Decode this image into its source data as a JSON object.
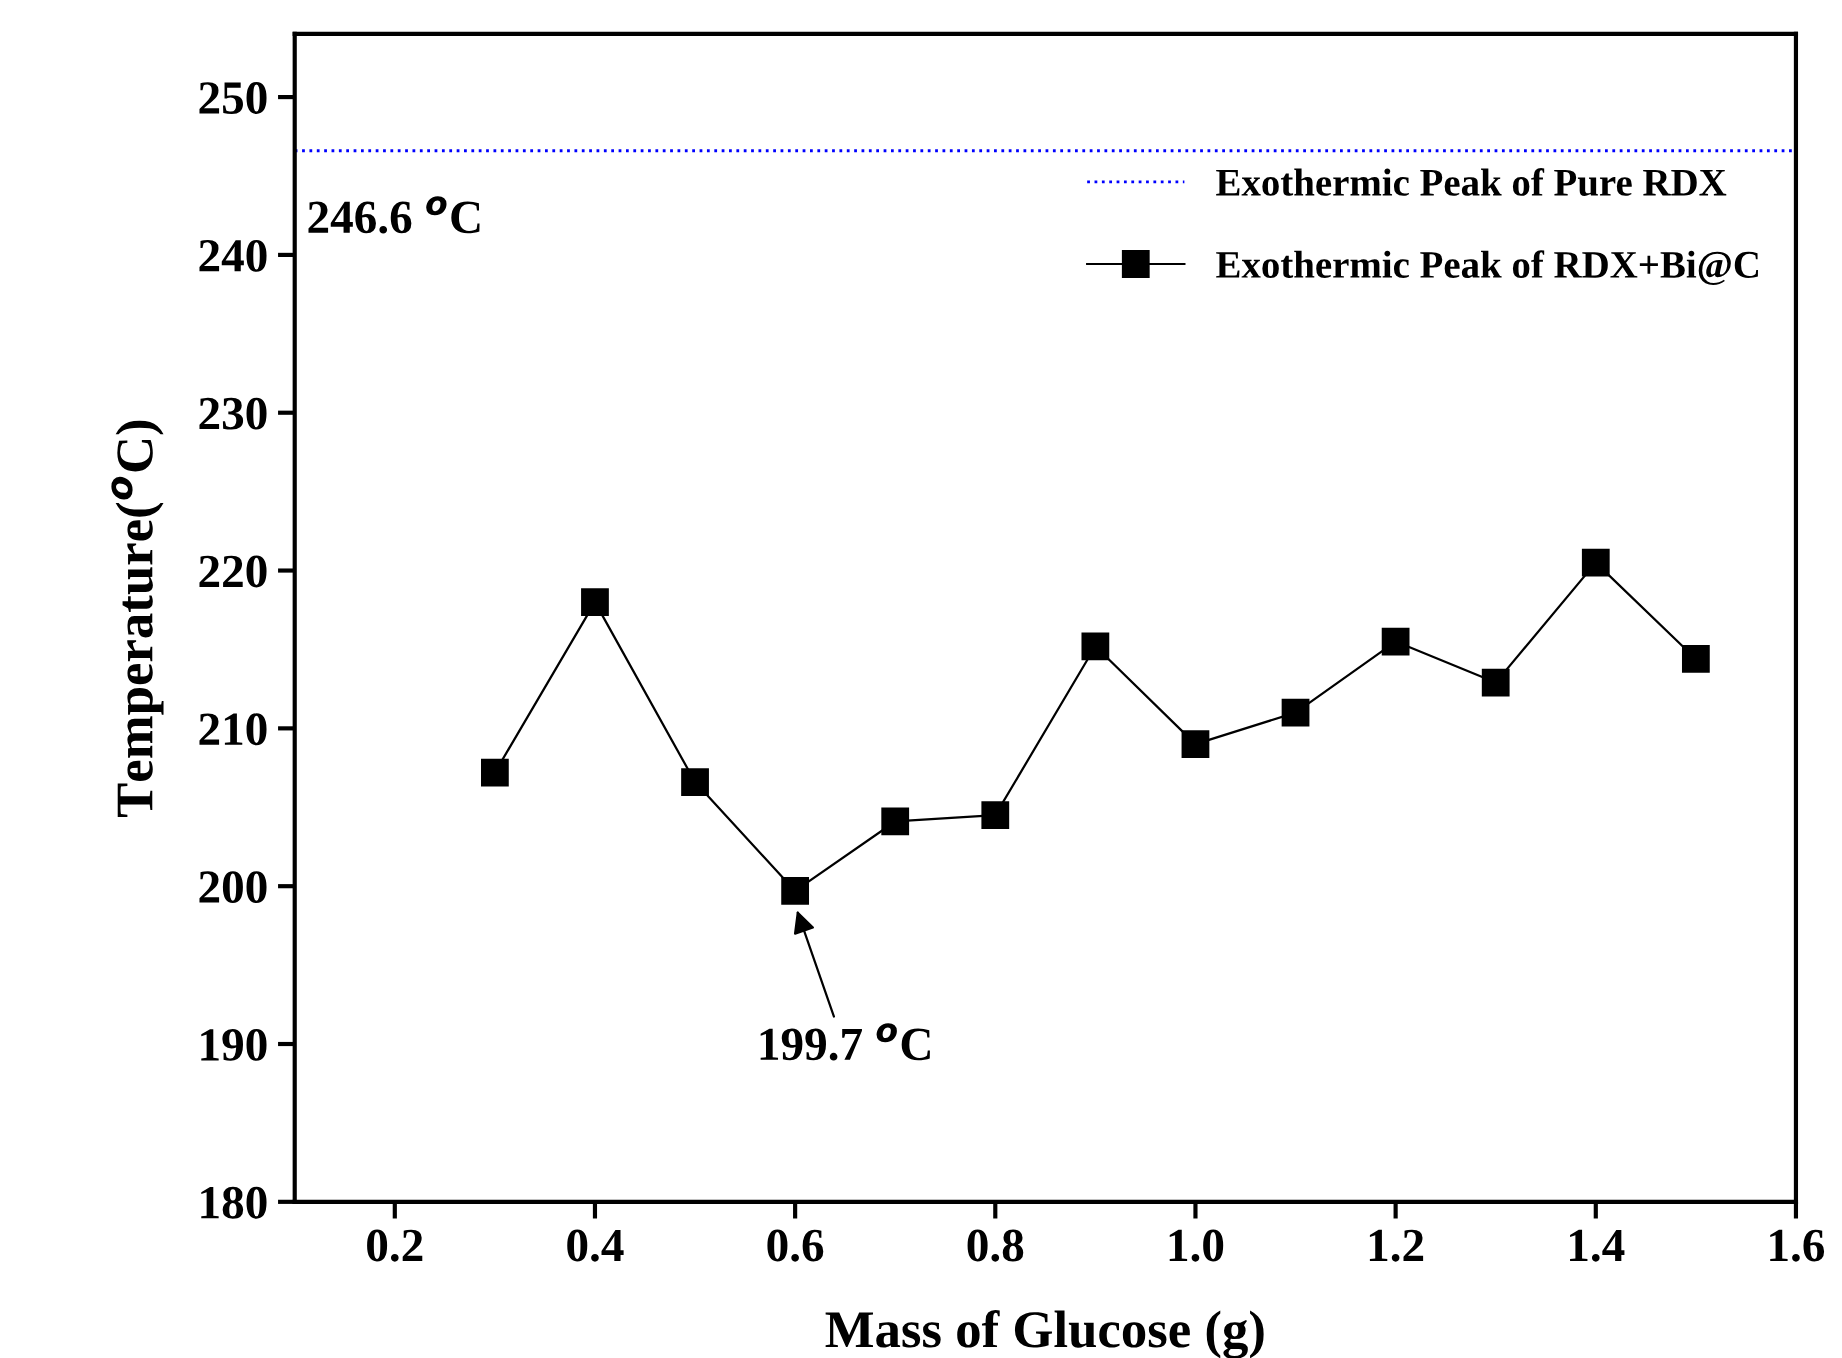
{
  "chart_data": {
    "type": "line",
    "xlabel": "Mass of Glucose (g)",
    "ylabel": "Temperature($^{o}$C)",
    "x": [
      0.3,
      0.4,
      0.5,
      0.6,
      0.7,
      0.8,
      0.9,
      1.0,
      1.1,
      1.2,
      1.3,
      1.4,
      1.5
    ],
    "series": [
      {
        "name": "Exothermic Peak of RDX+Bi@C",
        "color": "#000000",
        "values": [
          207.2,
          218.0,
          206.6,
          199.7,
          204.1,
          204.5,
          215.2,
          209.0,
          211.0,
          215.5,
          212.9,
          220.5,
          214.4
        ]
      }
    ],
    "marker": "square",
    "line_style": "solid",
    "ref_lines": [
      {
        "axis": "y",
        "value": 246.6,
        "label": "Exothermic Peak of Pure RDX",
        "color": "#0000ff",
        "line_style": "dotted"
      }
    ],
    "annotations": [
      {
        "text": "246.6 $^{o}$C",
        "x": 0.2,
        "y": 246.6
      },
      {
        "text": "199.7 $^{o}$C",
        "x": 0.6,
        "y": 199.7
      }
    ],
    "xlim": [
      0.1,
      1.6
    ],
    "xticks": [
      {
        "value": 0.2,
        "label": "0.2"
      },
      {
        "value": 0.4,
        "label": "0.4"
      },
      {
        "value": 0.6,
        "label": "0.6"
      },
      {
        "value": 0.8,
        "label": "0.8"
      },
      {
        "value": 1.0,
        "label": "1.0"
      },
      {
        "value": 1.2,
        "label": "1.2"
      },
      {
        "value": 1.4,
        "label": "1.4"
      },
      {
        "value": 1.6,
        "label": "1.6"
      }
    ],
    "ylim": [
      180,
      254
    ],
    "yticks": [
      180,
      190,
      200,
      210,
      220,
      230,
      240,
      250
    ],
    "grid": false,
    "legend": "top right"
  }
}
